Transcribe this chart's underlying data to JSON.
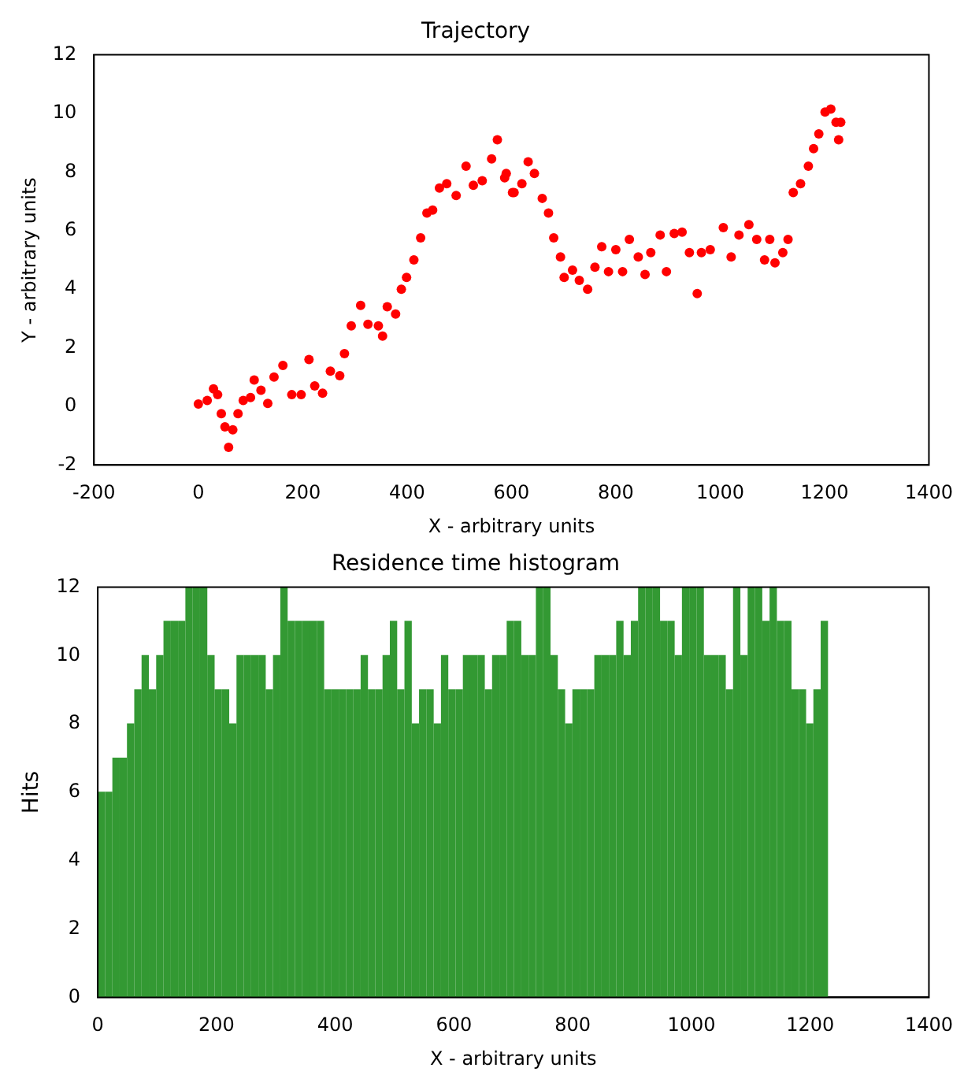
{
  "chart_data": [
    {
      "type": "scatter",
      "title": "Trajectory",
      "xlabel": "X - arbitrary units",
      "ylabel": "Y - arbitrary units",
      "color": "#ff0000",
      "marker": "circle",
      "grid": false,
      "x": [
        0,
        17,
        29,
        37,
        44,
        51,
        58,
        66,
        76,
        86,
        100,
        107,
        120,
        133,
        145,
        162,
        179,
        197,
        212,
        223,
        238,
        253,
        271,
        280,
        293,
        311,
        325,
        345,
        353,
        362,
        378,
        389,
        399,
        413,
        426,
        438,
        449,
        462,
        476,
        494,
        513,
        527,
        544,
        562,
        573,
        587,
        590,
        602,
        605,
        620,
        632,
        644,
        659,
        671,
        681,
        694,
        701,
        717,
        730,
        746,
        760,
        773,
        786,
        800,
        813,
        826,
        843,
        856,
        867,
        885,
        897,
        912,
        927,
        941,
        956,
        964,
        981,
        1006,
        1021,
        1036,
        1055,
        1070,
        1085,
        1095,
        1105,
        1120,
        1130,
        1140,
        1154,
        1169,
        1179,
        1189,
        1201,
        1212,
        1222,
        1227,
        1231
      ],
      "values": [
        0.08,
        0.2,
        0.6,
        0.4,
        -0.25,
        -0.7,
        -1.4,
        -0.8,
        -0.25,
        0.2,
        0.3,
        0.9,
        0.55,
        0.1,
        1.0,
        1.4,
        0.4,
        0.4,
        1.6,
        0.7,
        0.45,
        1.2,
        1.05,
        1.8,
        2.75,
        3.45,
        2.8,
        2.75,
        2.4,
        3.4,
        3.15,
        4.0,
        4.4,
        5.0,
        5.75,
        6.6,
        6.7,
        7.45,
        7.6,
        7.2,
        8.2,
        7.55,
        7.7,
        8.45,
        9.1,
        7.8,
        7.95,
        7.3,
        7.3,
        7.6,
        8.35,
        7.95,
        7.1,
        6.6,
        5.75,
        5.1,
        4.4,
        4.65,
        4.3,
        4.0,
        4.75,
        5.45,
        4.6,
        5.35,
        4.6,
        5.7,
        5.1,
        4.5,
        5.25,
        5.85,
        4.6,
        5.9,
        5.95,
        5.25,
        3.85,
        5.25,
        5.35,
        6.1,
        5.1,
        5.85,
        6.2,
        5.7,
        5.0,
        5.7,
        4.9,
        5.25,
        5.7,
        7.3,
        7.6,
        8.2,
        8.8,
        9.3,
        10.05,
        10.15,
        9.7,
        9.1,
        9.7
      ],
      "xlim": [
        -200,
        1400
      ],
      "xticks": [
        -200,
        0,
        200,
        400,
        600,
        800,
        1000,
        1200,
        1400
      ],
      "ylim": [
        -2,
        12
      ],
      "yticks": [
        -2,
        0,
        2,
        4,
        6,
        8,
        10,
        12
      ]
    },
    {
      "type": "histogram",
      "title": "Residence time histogram",
      "xlabel": "X - arbitrary units",
      "ylabel": "Hits",
      "color": "#339933",
      "grid": false,
      "bins": [
        0,
        12.3,
        24.6,
        36.9,
        49.2,
        61.5,
        73.8,
        86.1,
        98.4,
        110.7,
        123,
        135.3,
        147.6,
        159.9,
        172.2,
        184.5,
        196.8,
        209.1,
        221.4,
        233.7,
        246,
        258.3,
        270.6,
        282.9,
        295.2,
        307.5,
        319.8,
        332.1,
        344.4,
        356.7,
        369,
        381.3,
        393.6,
        405.9,
        418.2,
        430.5,
        442.8,
        455.1,
        467.4,
        479.7,
        492,
        504.3,
        516.6,
        528.9,
        541.2,
        553.5,
        565.8,
        578.1,
        590.4,
        602.7,
        615,
        627.3,
        639.6,
        651.9,
        664.2,
        676.5,
        688.8,
        701.1,
        713.4,
        725.7,
        738,
        750.3,
        762.6,
        774.9,
        787.2,
        799.5,
        811.8,
        824.1,
        836.4,
        848.7,
        861,
        873.3,
        885.6,
        897.9,
        910.2,
        922.5,
        934.8,
        947.1,
        959.4,
        971.7,
        984,
        996.3,
        1008.6,
        1020.9,
        1033.2,
        1045.5,
        1057.8,
        1070.1,
        1082.4,
        1094.7,
        1107,
        1119.3,
        1131.6,
        1143.9,
        1156.2,
        1168.5,
        1180.8,
        1193.1,
        1205.4,
        1217.7,
        1230
      ],
      "values": [
        6,
        6,
        7,
        7,
        8,
        9,
        10,
        9,
        10,
        11,
        11,
        11,
        12,
        12,
        12,
        10,
        9,
        9,
        8,
        10,
        10,
        10,
        10,
        9,
        10,
        12,
        11,
        11,
        11,
        11,
        11,
        9,
        9,
        9,
        9,
        9,
        10,
        9,
        9,
        10,
        11,
        9,
        11,
        8,
        9,
        9,
        8,
        10,
        9,
        9,
        10,
        10,
        10,
        9,
        10,
        10,
        11,
        11,
        10,
        10,
        12,
        12,
        10,
        9,
        8,
        9,
        9,
        9,
        10,
        10,
        10,
        11,
        10,
        11,
        12,
        12,
        12,
        11,
        11,
        10,
        12,
        12,
        12,
        10,
        10,
        10,
        9,
        12,
        10,
        12,
        12,
        11,
        12,
        11,
        11,
        9,
        9,
        8,
        9,
        11
      ],
      "xlim": [
        0,
        1400
      ],
      "xticks": [
        0,
        200,
        400,
        600,
        800,
        1000,
        1200,
        1400
      ],
      "ylim": [
        0,
        12
      ],
      "yticks": [
        0,
        2,
        4,
        6,
        8,
        10,
        12
      ]
    }
  ]
}
